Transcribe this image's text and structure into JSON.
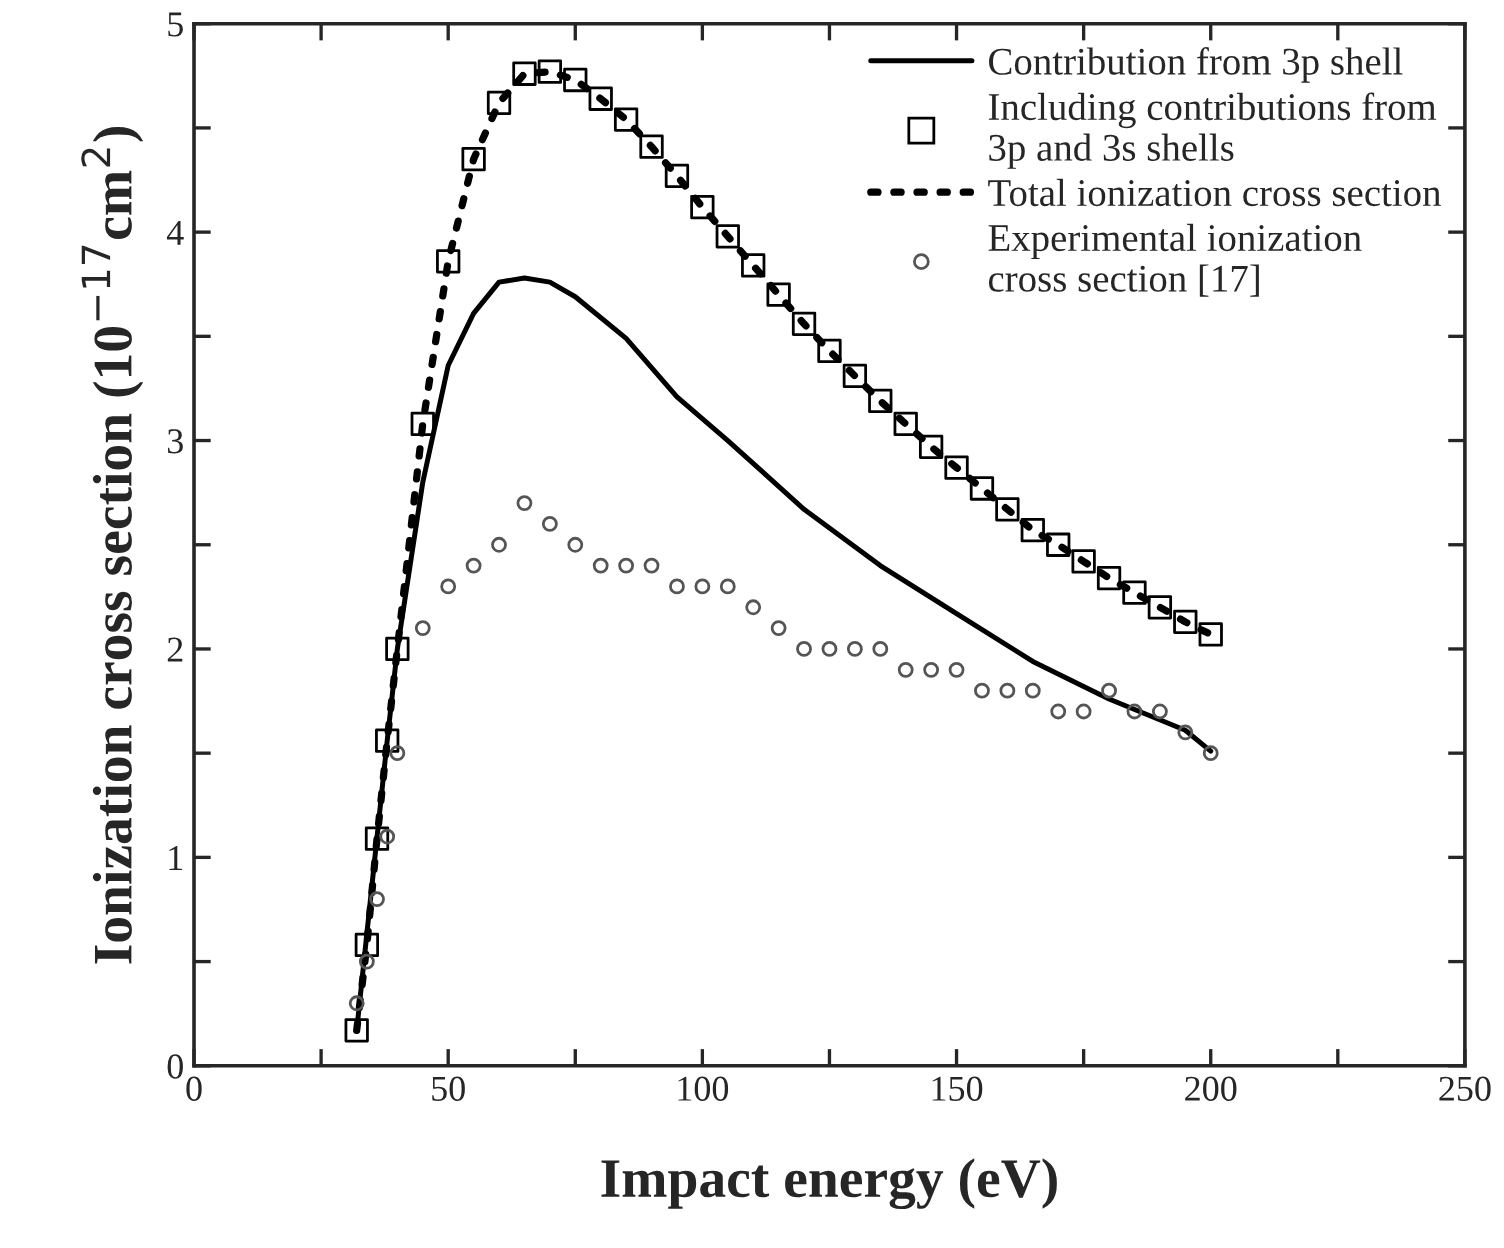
{
  "chart_data": {
    "type": "line",
    "xlabel": "Impact energy (eV)",
    "ylabel": "Ionization cross section (10$^{−17}$cm$^{2}$)",
    "xlim": [
      0,
      250
    ],
    "ylim": [
      0,
      5
    ],
    "xticks": [
      0,
      {
        "value": 25,
        "label": null
      },
      50,
      {
        "value": 75,
        "label": null
      },
      100,
      {
        "value": 125,
        "label": null
      },
      150,
      {
        "value": 175,
        "label": null
      },
      200,
      {
        "value": 225,
        "label": null
      },
      250
    ],
    "yticks": [
      0,
      {
        "value": 0.5,
        "label": null
      },
      1,
      {
        "value": 1.5,
        "label": null
      },
      2,
      {
        "value": 2.5,
        "label": null
      },
      3,
      {
        "value": 3.5,
        "label": null
      },
      4,
      {
        "value": 4.5,
        "label": null
      },
      5
    ],
    "grid": false,
    "legend": "top right",
    "series": [
      {
        "name": "Contribution from 3p shell",
        "type": "line",
        "line_style": "solid",
        "marker": "none",
        "color": "#000000",
        "x": [
          32,
          38,
          40,
          45,
          50,
          55,
          60,
          65,
          70,
          75,
          85,
          95,
          105,
          120,
          135,
          150,
          165,
          180,
          195,
          200
        ],
        "values": [
          0.17,
          1.56,
          2.0,
          2.8,
          3.36,
          3.61,
          3.76,
          3.78,
          3.76,
          3.69,
          3.49,
          3.21,
          3.0,
          2.67,
          2.4,
          2.17,
          1.94,
          1.76,
          1.61,
          1.51
        ]
      },
      {
        "name": "Including contributions from\n3p and 3s shells",
        "type": "scatter",
        "marker": "square",
        "color": "#000000",
        "x": [
          32,
          34,
          36,
          38,
          40,
          45,
          50,
          55,
          60,
          65,
          70,
          75,
          80,
          85,
          90,
          95,
          100,
          105,
          110,
          115,
          120,
          125,
          130,
          135,
          140,
          145,
          150,
          155,
          160,
          165,
          170,
          175,
          180,
          185,
          190,
          195,
          200
        ],
        "values": [
          0.17,
          0.58,
          1.09,
          1.56,
          2.0,
          3.08,
          3.86,
          4.35,
          4.62,
          4.76,
          4.77,
          4.73,
          4.64,
          4.54,
          4.41,
          4.27,
          4.12,
          3.98,
          3.84,
          3.7,
          3.56,
          3.43,
          3.31,
          3.19,
          3.08,
          2.97,
          2.87,
          2.77,
          2.67,
          2.57,
          2.5,
          2.42,
          2.34,
          2.27,
          2.2,
          2.13,
          2.07
        ]
      },
      {
        "name": "Total ionization cross section",
        "type": "line",
        "line_style": "dotted",
        "marker": "none",
        "color": "#000000",
        "x": [
          32,
          34,
          36,
          38,
          40,
          45,
          50,
          55,
          60,
          65,
          70,
          75,
          80,
          85,
          90,
          95,
          100,
          105,
          110,
          115,
          120,
          125,
          130,
          135,
          140,
          145,
          150,
          155,
          160,
          165,
          170,
          175,
          180,
          185,
          190,
          195,
          200
        ],
        "values": [
          0.17,
          0.58,
          1.09,
          1.56,
          2.0,
          3.08,
          3.86,
          4.35,
          4.62,
          4.76,
          4.77,
          4.73,
          4.64,
          4.54,
          4.41,
          4.27,
          4.12,
          3.98,
          3.84,
          3.7,
          3.56,
          3.43,
          3.31,
          3.19,
          3.08,
          2.97,
          2.87,
          2.77,
          2.67,
          2.57,
          2.5,
          2.42,
          2.34,
          2.27,
          2.2,
          2.13,
          2.07
        ]
      },
      {
        "name": "Experimental ionization\ncross section [17]",
        "type": "scatter",
        "marker": "circle",
        "color": "#555555",
        "x": [
          32,
          34,
          36,
          38,
          40,
          45,
          50,
          55,
          60,
          65,
          70,
          75,
          80,
          85,
          90,
          95,
          100,
          105,
          110,
          115,
          120,
          125,
          130,
          135,
          140,
          145,
          150,
          155,
          160,
          165,
          170,
          175,
          180,
          185,
          190,
          195,
          200
        ],
        "values": [
          0.3,
          0.5,
          0.8,
          1.1,
          1.5,
          2.1,
          2.3,
          2.4,
          2.5,
          2.7,
          2.6,
          2.5,
          2.4,
          2.4,
          2.4,
          2.3,
          2.3,
          2.3,
          2.2,
          2.1,
          2.0,
          2.0,
          2.0,
          2.0,
          1.9,
          1.9,
          1.9,
          1.8,
          1.8,
          1.8,
          1.7,
          1.7,
          1.8,
          1.7,
          1.7,
          1.6,
          1.5
        ]
      }
    ]
  }
}
